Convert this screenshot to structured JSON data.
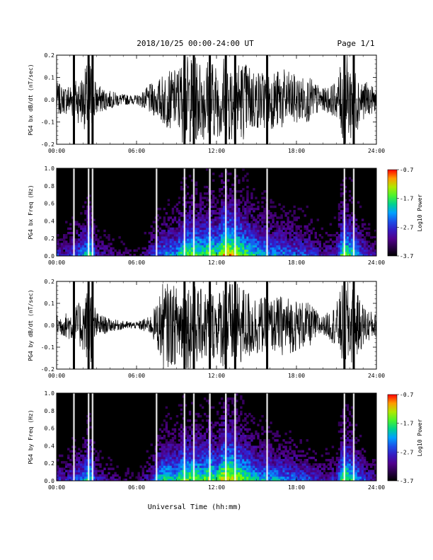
{
  "header": {
    "title": "2018/10/25  00:00-24:00 UT",
    "page": "Page 1/1"
  },
  "xlabel": "Universal Time (hh:mm)",
  "colorbar": {
    "label": "Log10 Power",
    "ticks": [
      "-0.7",
      "-1.7",
      "-2.7",
      "-3.7"
    ]
  },
  "chart_data": [
    {
      "type": "line",
      "name": "bx-waveform",
      "ylabel": "PG4 bx dB/dt (nT/sec)",
      "xlim": [
        0,
        24
      ],
      "ylim": [
        -0.2,
        0.2
      ],
      "yticks": [
        "0.2",
        "0.1",
        "0.0",
        "-0.1",
        "-0.2"
      ],
      "xticks": [
        "00:00",
        "06:00",
        "12:00",
        "18:00",
        "24:00"
      ],
      "envelope_hours": [
        0,
        0.5,
        1,
        2,
        2.5,
        3,
        4,
        5,
        6,
        6.5,
        7,
        7.5,
        8,
        9,
        9.5,
        10,
        11,
        11.5,
        12,
        12.5,
        13,
        14,
        15,
        16,
        17,
        18,
        19,
        20,
        21,
        21.5,
        22,
        23,
        23.5,
        24
      ],
      "envelope_nT_per_sec": [
        0.08,
        0.06,
        0.08,
        0.12,
        0.2,
        0.07,
        0.04,
        0.025,
        0.02,
        0.04,
        0.07,
        0.08,
        0.12,
        0.14,
        0.2,
        0.2,
        0.18,
        0.2,
        0.16,
        0.2,
        0.2,
        0.18,
        0.14,
        0.13,
        0.14,
        0.11,
        0.1,
        0.05,
        0.08,
        0.2,
        0.2,
        0.09,
        0.07,
        0.05
      ],
      "dropouts_hours": [
        1.3,
        2.4,
        2.7,
        9.6,
        10.3,
        11.5,
        12.7,
        13.4,
        15.8,
        21.6,
        22.3
      ]
    },
    {
      "type": "heatmap",
      "name": "bx-spectrogram",
      "ylabel": "PG4 bx Freq (Hz)",
      "xlim": [
        0,
        24
      ],
      "ylim": [
        0,
        1.0
      ],
      "yticks": [
        "1.0",
        "0.8",
        "0.6",
        "0.4",
        "0.2",
        "0.0"
      ],
      "xticks": [
        "00:00",
        "06:00",
        "12:00",
        "18:00",
        "24:00"
      ],
      "zlim": [
        -3.7,
        -0.7
      ],
      "zlabel": "Log10 Power",
      "activity_hours": [
        0,
        0.5,
        1,
        2,
        2.5,
        3,
        4,
        5,
        6,
        6.5,
        7,
        7.5,
        8,
        9,
        9.5,
        10,
        11,
        11.5,
        12,
        12.5,
        13,
        14,
        15,
        16,
        17,
        18,
        19,
        20,
        21,
        21.5,
        22,
        23,
        23.5,
        24
      ],
      "activity_level": [
        0.4,
        0.3,
        0.4,
        0.55,
        0.75,
        0.35,
        0.25,
        0.2,
        0.15,
        0.25,
        0.35,
        0.45,
        0.55,
        0.6,
        0.75,
        0.8,
        0.75,
        0.85,
        0.7,
        0.95,
        0.95,
        0.8,
        0.65,
        0.6,
        0.55,
        0.5,
        0.45,
        0.3,
        0.4,
        0.8,
        0.75,
        0.45,
        0.35,
        0.3
      ],
      "dropouts_hours": [
        1.3,
        2.4,
        2.7,
        7.5,
        9.6,
        10.3,
        11.5,
        12.7,
        13.4,
        15.8,
        21.6,
        22.3
      ]
    },
    {
      "type": "line",
      "name": "by-waveform",
      "ylabel": "PG4 by dB/dt (nT/sec)",
      "xlim": [
        0,
        24
      ],
      "ylim": [
        -0.2,
        0.2
      ],
      "yticks": [
        "0.2",
        "0.1",
        "0.0",
        "-0.1",
        "-0.2"
      ],
      "xticks": [
        "00:00",
        "06:00",
        "12:00",
        "18:00",
        "24:00"
      ],
      "envelope_hours": [
        0,
        0.5,
        1,
        2,
        2.5,
        3,
        4,
        5,
        6,
        6.5,
        7,
        7.5,
        8,
        9,
        9.5,
        10,
        11,
        11.5,
        12,
        12.5,
        13,
        14,
        15,
        16,
        17,
        18,
        19,
        20,
        21,
        21.5,
        22,
        23,
        23.5,
        24
      ],
      "envelope_nT_per_sec": [
        0.05,
        0.05,
        0.07,
        0.12,
        0.2,
        0.06,
        0.03,
        0.02,
        0.015,
        0.03,
        0.04,
        0.1,
        0.2,
        0.18,
        0.2,
        0.2,
        0.16,
        0.18,
        0.14,
        0.2,
        0.2,
        0.18,
        0.14,
        0.12,
        0.14,
        0.12,
        0.1,
        0.04,
        0.1,
        0.2,
        0.2,
        0.1,
        0.07,
        0.05
      ],
      "dropouts_hours": [
        1.3,
        2.4,
        2.7,
        9.6,
        10.3,
        11.5,
        12.7,
        13.4,
        15.8,
        21.6,
        22.3
      ]
    },
    {
      "type": "heatmap",
      "name": "by-spectrogram",
      "ylabel": "PG4 by Freq (Hz)",
      "xlim": [
        0,
        24
      ],
      "ylim": [
        0,
        1.0
      ],
      "yticks": [
        "1.0",
        "0.8",
        "0.6",
        "0.4",
        "0.2",
        "0.0"
      ],
      "xticks": [
        "00:00",
        "06:00",
        "12:00",
        "18:00",
        "24:00"
      ],
      "zlim": [
        -3.7,
        -0.7
      ],
      "zlabel": "Log10 Power",
      "activity_hours": [
        0,
        0.5,
        1,
        2,
        2.5,
        3,
        4,
        5,
        6,
        6.5,
        7,
        7.5,
        8,
        9,
        9.5,
        10,
        11,
        11.5,
        12,
        12.5,
        13,
        14,
        15,
        16,
        17,
        18,
        19,
        20,
        21,
        21.5,
        22,
        23,
        23.5,
        24
      ],
      "activity_level": [
        0.4,
        0.3,
        0.4,
        0.55,
        0.75,
        0.35,
        0.25,
        0.2,
        0.15,
        0.25,
        0.35,
        0.55,
        0.7,
        0.65,
        0.8,
        0.8,
        0.75,
        0.85,
        0.7,
        0.95,
        0.95,
        0.8,
        0.65,
        0.6,
        0.55,
        0.5,
        0.45,
        0.3,
        0.4,
        0.8,
        0.75,
        0.45,
        0.35,
        0.3
      ],
      "dropouts_hours": [
        1.3,
        2.4,
        2.7,
        7.5,
        9.6,
        10.3,
        11.5,
        12.7,
        13.4,
        15.8,
        21.6,
        22.3
      ]
    }
  ]
}
